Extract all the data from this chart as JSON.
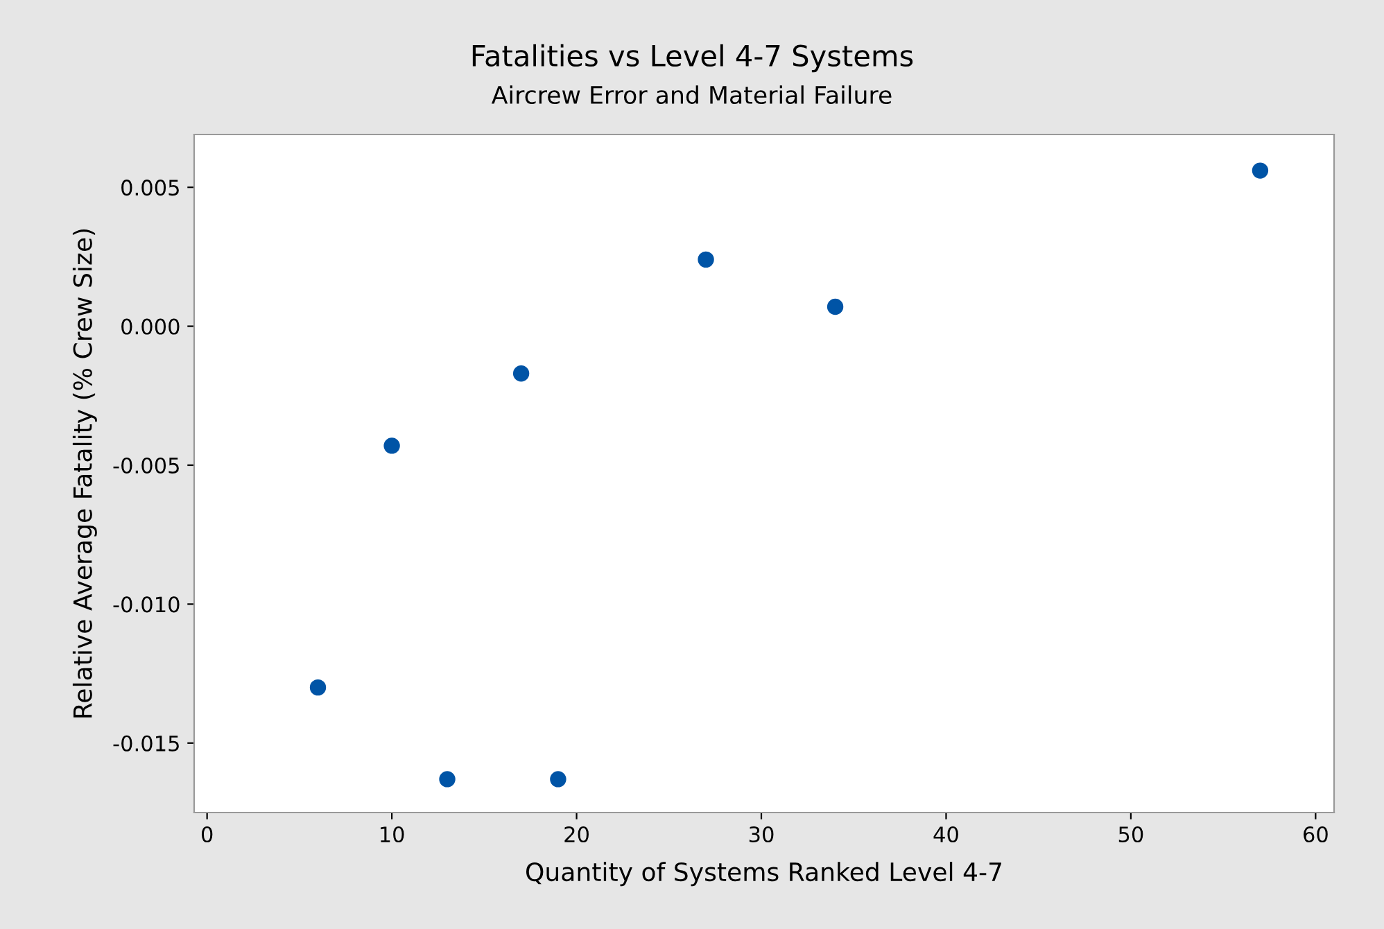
{
  "chart_data": {
    "type": "scatter",
    "title": "Fatalities vs Level 4-7 Systems",
    "subtitle": "Aircrew Error and Material Failure",
    "xlabel": "Quantity of Systems Ranked Level 4-7",
    "ylabel": "Relative Average Fatality (% Crew Size)",
    "series": [
      {
        "color": "#0054a6",
        "x": [
          6,
          10,
          13,
          17,
          19,
          27,
          34,
          57
        ],
        "values": [
          -0.013,
          -0.0043,
          -0.0163,
          -0.0017,
          -0.0163,
          0.0024,
          0.0007,
          0.0056
        ]
      }
    ],
    "xlim": [
      -0.7,
      61
    ],
    "xticks": [
      0,
      10,
      20,
      30,
      40,
      50,
      60
    ],
    "ylim": [
      -0.0175,
      0.0069
    ],
    "yticks": [
      {
        "value": -0.015,
        "label": "-0.015"
      },
      {
        "value": -0.01,
        "label": "-0.010"
      },
      {
        "value": -0.005,
        "label": "-0.005"
      },
      {
        "value": 0,
        "label": "0.000"
      },
      {
        "value": 0.005,
        "label": "0.005"
      }
    ],
    "marker": "circle",
    "grid": false,
    "legend": false
  }
}
